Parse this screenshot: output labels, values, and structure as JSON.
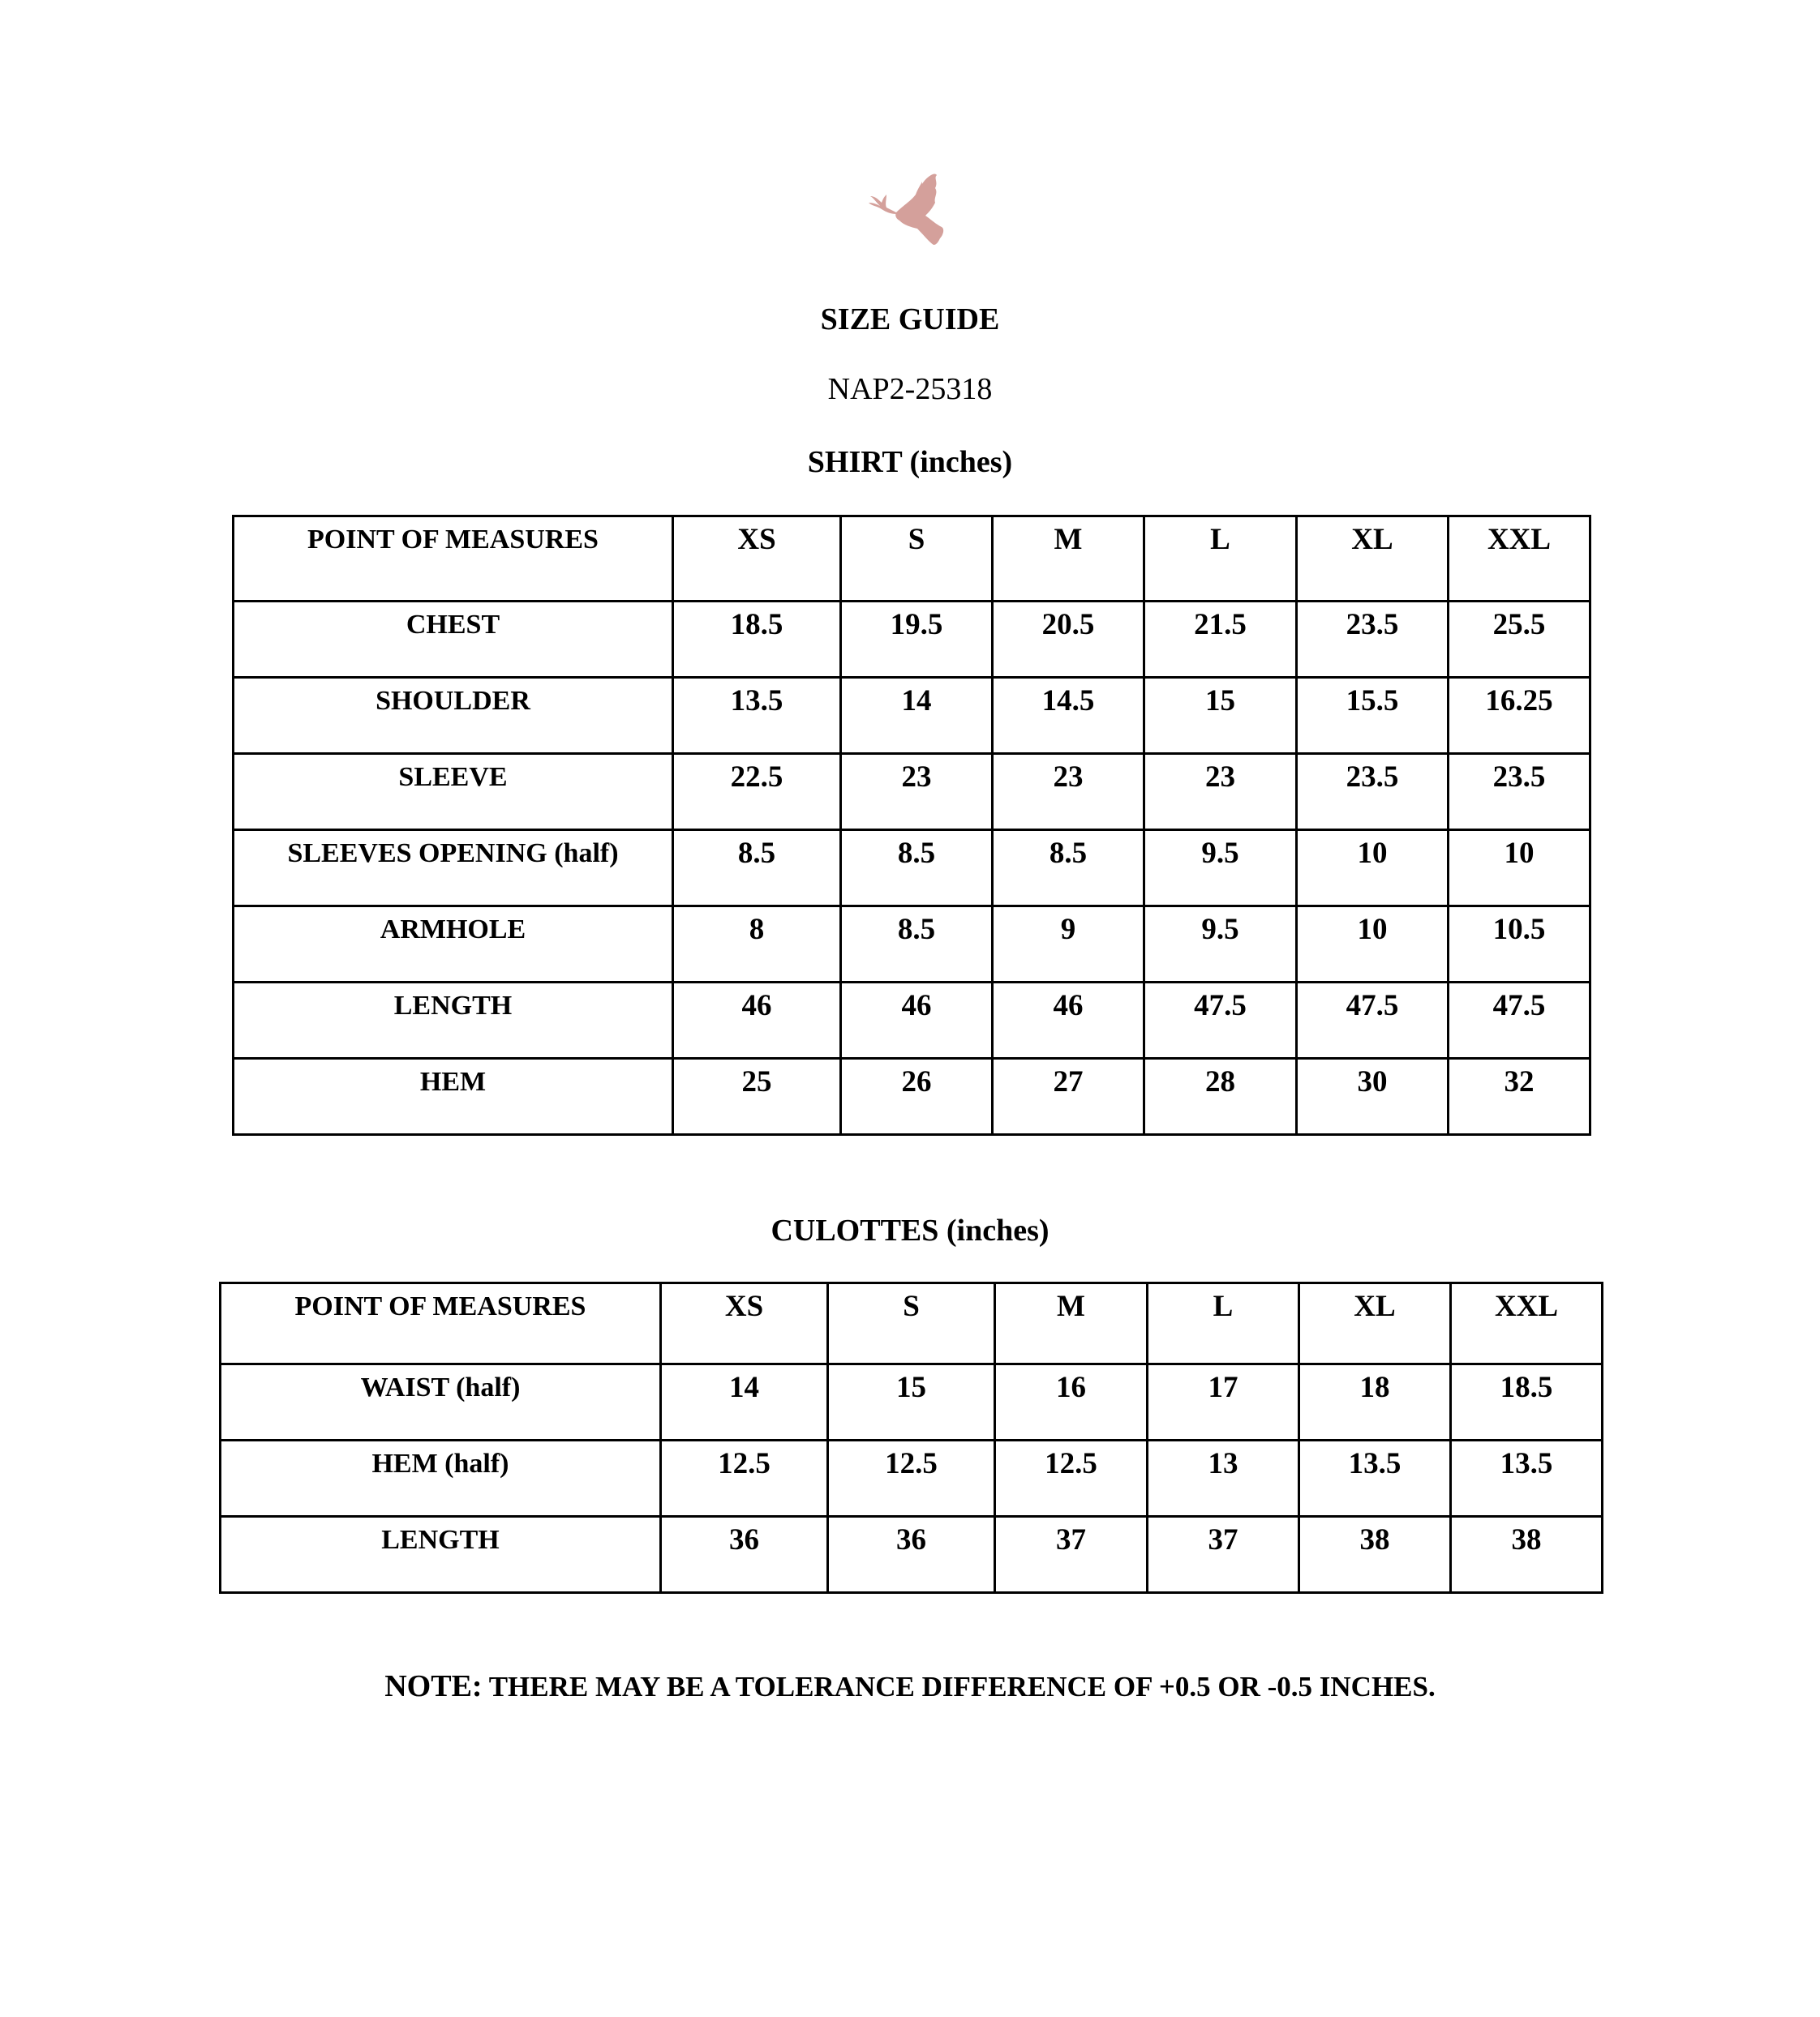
{
  "logo": {
    "icon": "dove-icon",
    "color": "#d4a09b"
  },
  "header": {
    "title": "SIZE GUIDE",
    "code": "NAP2-25318"
  },
  "shirt": {
    "title": "SHIRT (inches)",
    "columns": [
      "POINT OF MEASURES",
      "XS",
      "S",
      "M",
      "L",
      "XL",
      "XXL"
    ],
    "rows": [
      [
        "CHEST",
        "18.5",
        "19.5",
        "20.5",
        "21.5",
        "23.5",
        "25.5"
      ],
      [
        "SHOULDER",
        "13.5",
        "14",
        "14.5",
        "15",
        "15.5",
        "16.25"
      ],
      [
        "SLEEVE",
        "22.5",
        "23",
        "23",
        "23",
        "23.5",
        "23.5"
      ],
      [
        "SLEEVES OPENING (half)",
        "8.5",
        "8.5",
        "8.5",
        "9.5",
        "10",
        "10"
      ],
      [
        "ARMHOLE",
        "8",
        "8.5",
        "9",
        "9.5",
        "10",
        "10.5"
      ],
      [
        "LENGTH",
        "46",
        "46",
        "46",
        "47.5",
        "47.5",
        "47.5"
      ],
      [
        "HEM",
        "25",
        "26",
        "27",
        "28",
        "30",
        "32"
      ]
    ]
  },
  "culottes": {
    "title": "CULOTTES (inches)",
    "columns": [
      "POINT OF MEASURES",
      "XS",
      "S",
      "M",
      "L",
      "XL",
      "XXL"
    ],
    "rows": [
      [
        "WAIST (half)",
        "14",
        "15",
        "16",
        "17",
        "18",
        "18.5"
      ],
      [
        "HEM (half)",
        "12.5",
        "12.5",
        "12.5",
        "13",
        "13.5",
        "13.5"
      ],
      [
        "LENGTH",
        "36",
        "36",
        "37",
        "37",
        "38",
        "38"
      ]
    ]
  },
  "note": {
    "label": "NOTE:",
    "text": " THERE MAY BE A TOLERANCE DIFFERENCE OF +0.5 OR -0.5 INCHES."
  }
}
